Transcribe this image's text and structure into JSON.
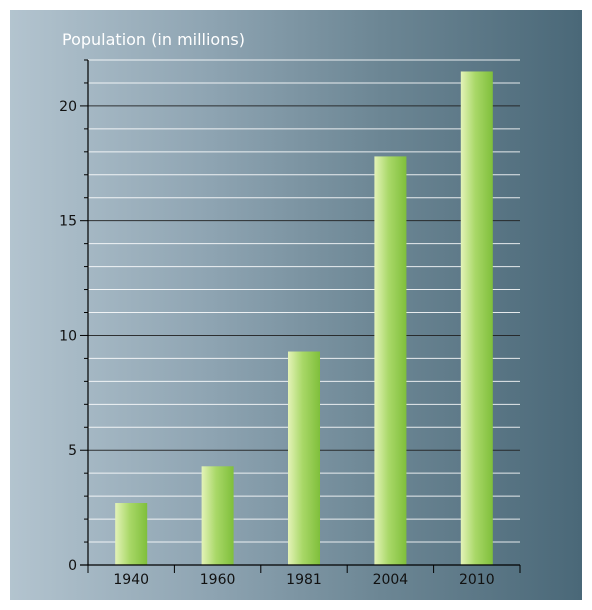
{
  "chart_data": {
    "type": "bar",
    "title": "Population (in millions)",
    "xlabel": "",
    "ylabel": "",
    "categories": [
      "1940",
      "1960",
      "1981",
      "2004",
      "2010"
    ],
    "values": [
      2.7,
      4.3,
      9.3,
      17.8,
      21.5
    ],
    "ylim": [
      0,
      22
    ],
    "y_ticks": [
      "0",
      "5",
      "10",
      "15",
      "20"
    ],
    "grid": true,
    "colors": {
      "bar_light": "#e4f3b8",
      "bar_mid": "#a9d868",
      "bar_dark": "#7fbf3b",
      "grid_major": "#222222",
      "grid_minor": "#ffffff",
      "axis": "#000000",
      "text": "#111111",
      "title": "#ffffff"
    }
  }
}
